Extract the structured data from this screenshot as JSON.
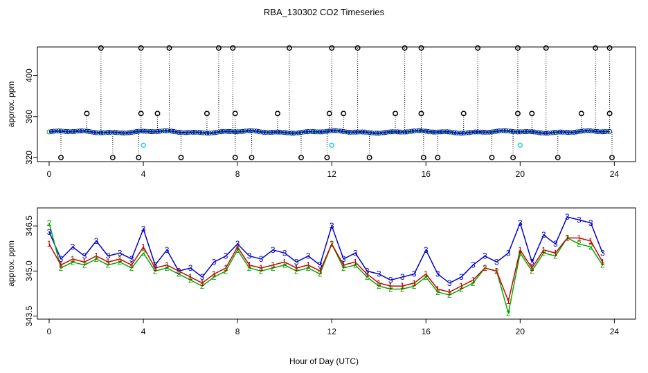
{
  "title": "RBA_130302  CO2 Timeseries",
  "xlabel": "Hour of Day (UTC)",
  "chart_data": [
    {
      "type": "scatter",
      "name": "top-panel",
      "ylabel": "approx. ppm",
      "xlim": [
        -0.5,
        24.9
      ],
      "ylim": [
        316,
        428
      ],
      "xticks": [
        0,
        4,
        8,
        12,
        16,
        20,
        24
      ],
      "xticklabels": [
        "0",
        "4",
        "8",
        "12",
        "16",
        "20",
        "24"
      ],
      "yticks": [
        320,
        360,
        400
      ],
      "yticklabels": [
        "320",
        "360",
        "400"
      ],
      "baseline": 345,
      "colors": {
        "outlier": "#000000",
        "line": "#0000cc",
        "mid": "#00aa00",
        "flag": "#00cccc"
      },
      "spikes_high": [
        2.2,
        3.9,
        5.1,
        7.2,
        7.8,
        10.2,
        12.0,
        13.1,
        15.1,
        15.8,
        18.2,
        19.9,
        21.1,
        23.2,
        23.8
      ],
      "spikes_mid": [
        1.6,
        3.9,
        4.6,
        6.7,
        7.9,
        9.7,
        11.9,
        12.5,
        14.7,
        15.8,
        17.6,
        19.9,
        20.5,
        22.6,
        23.8
      ],
      "spikes_low": [
        0.5,
        2.7,
        3.8,
        5.6,
        7.9,
        8.6,
        10.7,
        11.8,
        13.6,
        15.9,
        16.5,
        18.8,
        19.7,
        21.6,
        23.9
      ],
      "high_value": 427,
      "mid_value": 363,
      "low_value": 320,
      "flag_points": [
        {
          "x": 4.0,
          "y": 332
        },
        {
          "x": 12.0,
          "y": 332
        },
        {
          "x": 20.0,
          "y": 332
        }
      ]
    },
    {
      "type": "line",
      "name": "bottom-panel",
      "ylabel": "approx. ppm",
      "xlim": [
        -0.5,
        24.9
      ],
      "ylim": [
        343.4,
        347.1
      ],
      "xticks": [
        0,
        4,
        8,
        12,
        16,
        20,
        24
      ],
      "xticklabels": [
        "0",
        "4",
        "8",
        "12",
        "16",
        "20",
        "24"
      ],
      "yticks": [
        343.5,
        345.0,
        346.5
      ],
      "yticklabels": [
        "343.5",
        "345.0",
        "346.5"
      ],
      "series": [
        {
          "name": "3",
          "color": "#0000cc",
          "x": [
            0.0,
            0.5,
            1.0,
            1.5,
            2.0,
            2.5,
            3.0,
            3.5,
            4.0,
            4.5,
            5.0,
            5.5,
            6.0,
            6.5,
            7.0,
            7.5,
            8.0,
            8.5,
            9.0,
            9.5,
            10.0,
            10.5,
            11.0,
            11.5,
            12.0,
            12.5,
            13.0,
            13.5,
            14.0,
            14.5,
            15.0,
            15.5,
            16.0,
            16.5,
            17.0,
            17.5,
            18.0,
            18.5,
            19.0,
            19.5,
            20.0,
            20.5,
            21.0,
            21.5,
            22.0,
            22.5,
            23.0,
            23.5
          ],
          "values": [
            346.3,
            345.4,
            345.8,
            345.5,
            346.0,
            345.5,
            345.6,
            345.4,
            346.4,
            345.2,
            345.7,
            345.0,
            345.1,
            344.8,
            345.3,
            345.5,
            345.9,
            345.5,
            345.4,
            345.7,
            345.6,
            345.3,
            345.5,
            345.2,
            346.5,
            345.4,
            345.6,
            345.0,
            344.9,
            344.7,
            344.8,
            344.9,
            345.7,
            344.9,
            344.6,
            344.8,
            345.2,
            345.5,
            345.3,
            345.6,
            346.6,
            345.3,
            346.2,
            345.9,
            346.8,
            346.7,
            346.6,
            345.6
          ]
        },
        {
          "name": "2",
          "color": "#00aa00",
          "x": [
            0.0,
            0.5,
            1.0,
            1.5,
            2.0,
            2.5,
            3.0,
            3.5,
            4.0,
            4.5,
            5.0,
            5.5,
            6.0,
            6.5,
            7.0,
            7.5,
            8.0,
            8.5,
            9.0,
            9.5,
            10.0,
            10.5,
            11.0,
            11.5,
            12.0,
            12.5,
            13.0,
            13.5,
            14.0,
            14.5,
            15.0,
            15.5,
            16.0,
            16.5,
            17.0,
            17.5,
            18.0,
            18.5,
            19.0,
            19.5,
            20.0,
            20.5,
            21.0,
            21.5,
            22.0,
            22.5,
            23.0,
            23.5
          ],
          "values": [
            346.6,
            345.1,
            345.3,
            345.2,
            345.4,
            345.2,
            345.3,
            345.1,
            345.6,
            345.0,
            345.1,
            344.9,
            344.7,
            344.5,
            344.8,
            345.0,
            345.7,
            345.1,
            345.0,
            345.1,
            345.2,
            345.0,
            345.1,
            344.9,
            345.9,
            345.1,
            345.2,
            344.8,
            344.5,
            344.4,
            344.4,
            344.5,
            344.8,
            344.3,
            344.2,
            344.4,
            344.6,
            345.1,
            345.0,
            343.6,
            345.6,
            345.0,
            345.6,
            345.5,
            346.1,
            345.9,
            345.8,
            345.2
          ]
        },
        {
          "name": "1",
          "color": "#cc0000",
          "x": [
            0.0,
            0.5,
            1.0,
            1.5,
            2.0,
            2.5,
            3.0,
            3.5,
            4.0,
            4.5,
            5.0,
            5.5,
            6.0,
            6.5,
            7.0,
            7.5,
            8.0,
            8.5,
            9.0,
            9.5,
            10.0,
            10.5,
            11.0,
            11.5,
            12.0,
            12.5,
            13.0,
            13.5,
            14.0,
            14.5,
            15.0,
            15.5,
            16.0,
            16.5,
            17.0,
            17.5,
            18.0,
            18.5,
            19.0,
            19.5,
            20.0,
            20.5,
            21.0,
            21.5,
            22.0,
            22.5,
            23.0,
            23.5
          ],
          "values": [
            345.9,
            345.2,
            345.4,
            345.3,
            345.5,
            345.3,
            345.4,
            345.2,
            345.8,
            345.1,
            345.2,
            345.0,
            344.8,
            344.6,
            344.9,
            345.1,
            345.8,
            345.2,
            345.1,
            345.2,
            345.3,
            345.1,
            345.2,
            345.0,
            345.9,
            345.2,
            345.3,
            344.9,
            344.6,
            344.5,
            344.5,
            344.6,
            344.9,
            344.4,
            344.3,
            344.5,
            344.7,
            345.1,
            345.0,
            344.0,
            345.7,
            345.1,
            345.7,
            345.6,
            346.1,
            346.1,
            346.0,
            345.3
          ]
        }
      ]
    }
  ]
}
